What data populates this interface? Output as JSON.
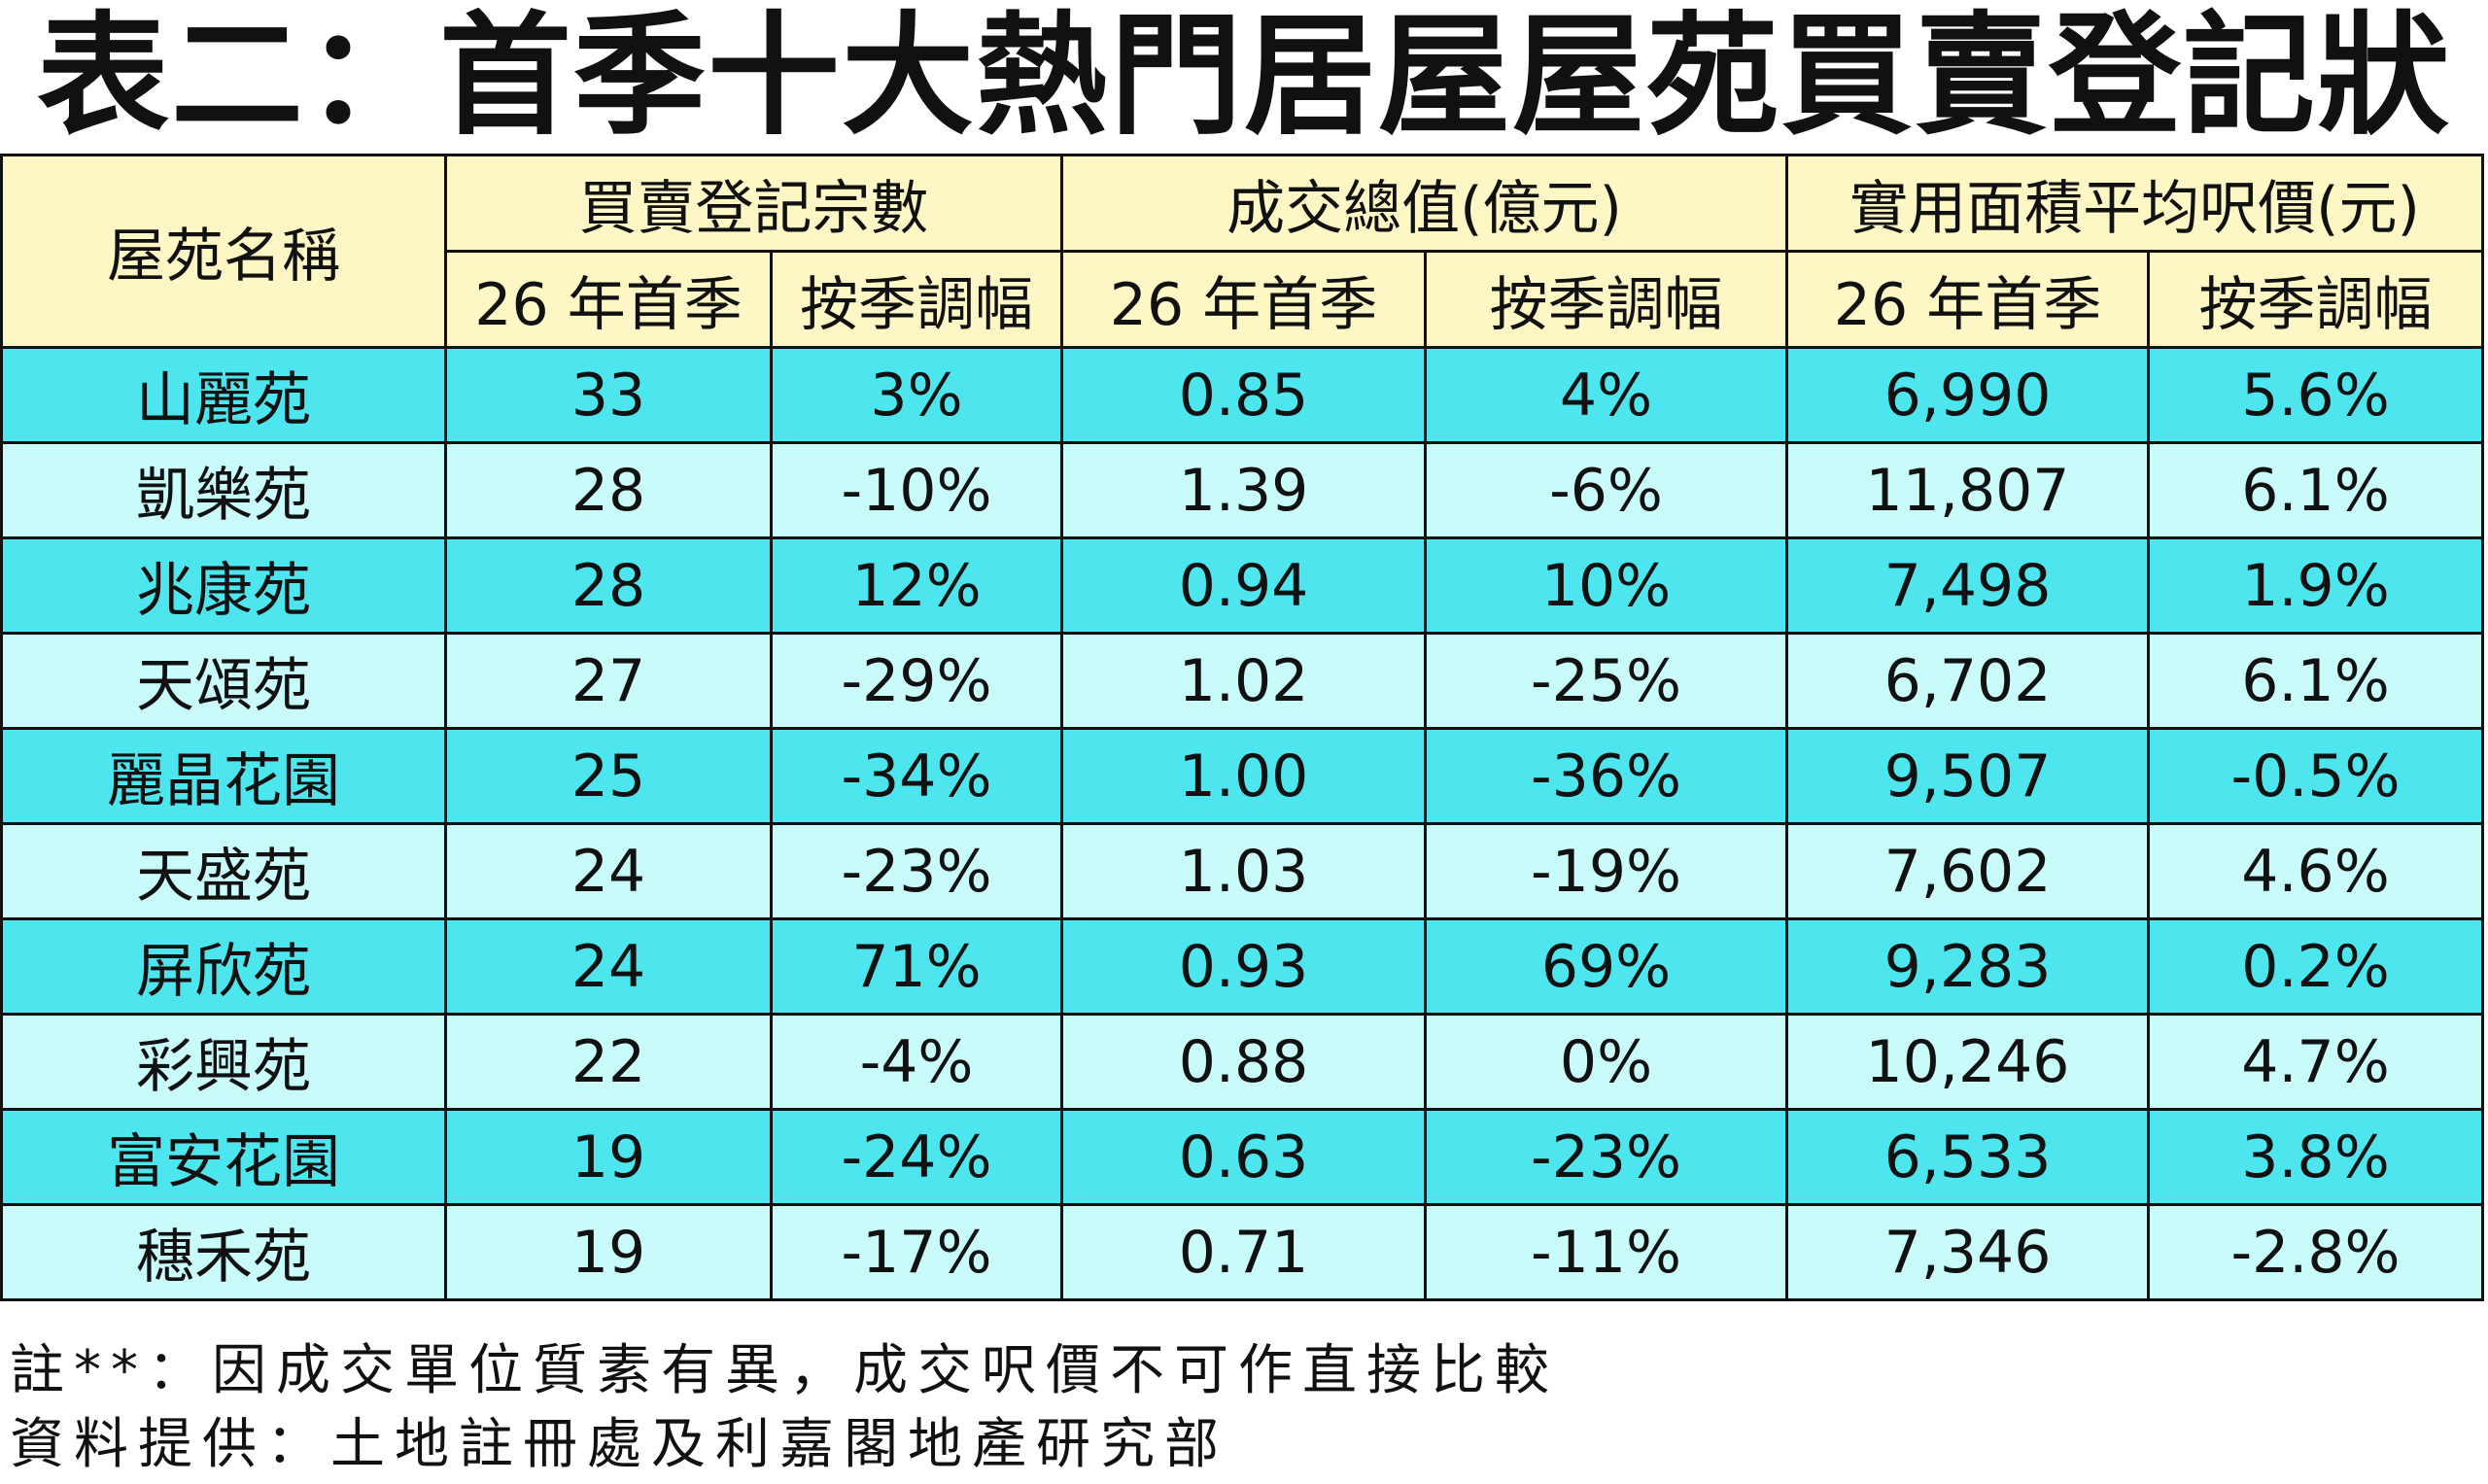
{
  "header": {
    "title": "表二：首季十大熱門居屋屋苑買賣登記狀況"
  },
  "table": {
    "corner": "屋苑名稱",
    "groups": [
      "買賣登記宗數",
      "成交總值(億元)",
      "實用面積平均呎價(元)"
    ],
    "subheaders": [
      "26 年首季",
      "按季調幅",
      "26 年首季",
      "按季調幅",
      "26 年首季",
      "按季調幅"
    ],
    "rows": [
      [
        "山麗苑",
        "33",
        "3%",
        "0.85",
        "4%",
        "6,990",
        "5.6%"
      ],
      [
        "凱樂苑",
        "28",
        "-10%",
        "1.39",
        "-6%",
        "11,807",
        "6.1%"
      ],
      [
        "兆康苑",
        "28",
        "12%",
        "0.94",
        "10%",
        "7,498",
        "1.9%"
      ],
      [
        "天頌苑",
        "27",
        "-29%",
        "1.02",
        "-25%",
        "6,702",
        "6.1%"
      ],
      [
        "麗晶花園",
        "25",
        "-34%",
        "1.00",
        "-36%",
        "9,507",
        "-0.5%"
      ],
      [
        "天盛苑",
        "24",
        "-23%",
        "1.03",
        "-19%",
        "7,602",
        "4.6%"
      ],
      [
        "屏欣苑",
        "24",
        "71%",
        "0.93",
        "69%",
        "9,283",
        "0.2%"
      ],
      [
        "彩興苑",
        "22",
        "-4%",
        "0.88",
        "0%",
        "10,246",
        "4.7%"
      ],
      [
        "富安花園",
        "19",
        "-24%",
        "0.63",
        "-23%",
        "6,533",
        "3.8%"
      ],
      [
        "穗禾苑",
        "19",
        "-17%",
        "0.71",
        "-11%",
        "7,346",
        "-2.8%"
      ]
    ]
  },
  "notes": [
    "註**：因成交單位質素有異，成交呎價不可作直接比較",
    "資料提供：土地註冊處及利嘉閣地產研究部"
  ]
}
